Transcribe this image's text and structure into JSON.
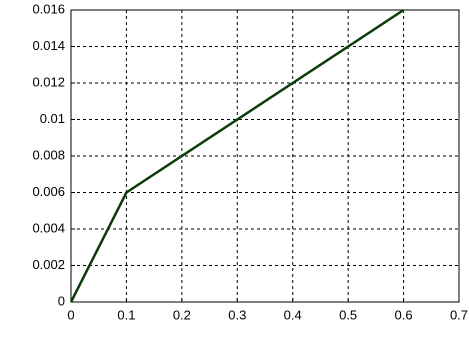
{
  "chart_data": {
    "type": "line",
    "x": [
      0,
      0.1,
      0.6
    ],
    "series": [
      {
        "values": [
          0,
          0.006,
          0.016
        ],
        "color": "#0b3d0b"
      }
    ],
    "xlim": [
      0,
      0.7
    ],
    "xticks": [
      0,
      0.1,
      0.2,
      0.3,
      0.4,
      0.5,
      0.6,
      0.7
    ],
    "ylim": [
      0,
      0.016
    ],
    "yticks": [
      0,
      0.002,
      0.004,
      0.006,
      0.008,
      0.01,
      0.012,
      0.014,
      0.016
    ],
    "grid": true
  }
}
